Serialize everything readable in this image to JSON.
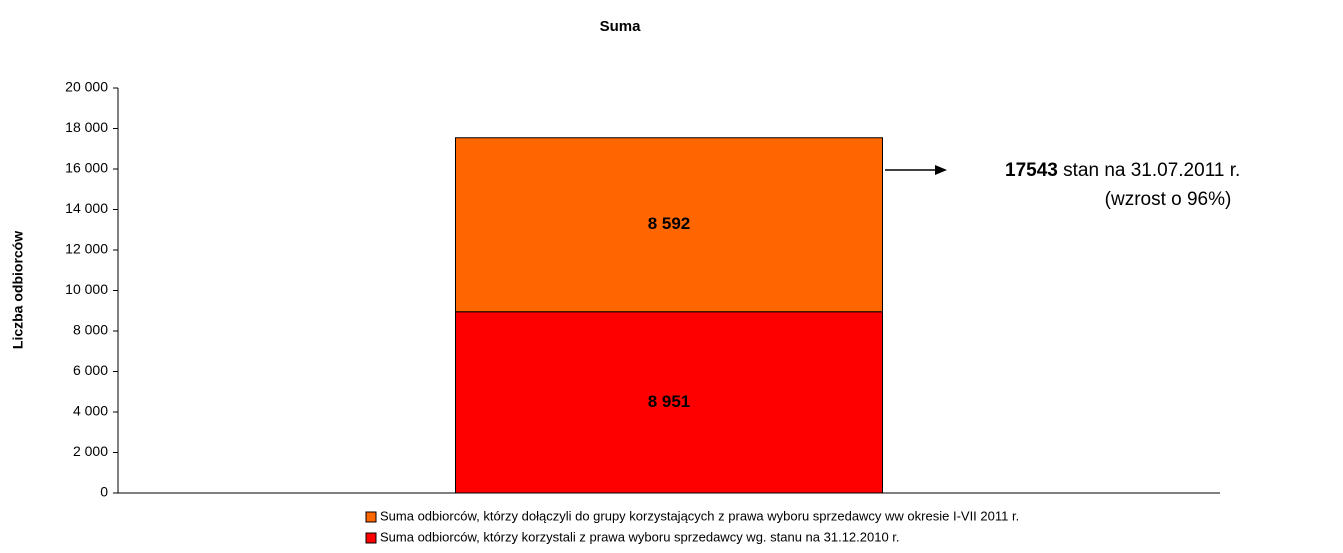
{
  "chart_data": {
    "type": "stacked_bar",
    "title": "Suma",
    "ylabel": "Liczba odbiorców",
    "categories": [
      null
    ],
    "series": [
      {
        "name": "Suma odbiorców, którzy korzystali z prawa wyboru sprzedawcy wg. stanu na 31.12.2010 r.",
        "color": "#ff0000",
        "values": [
          8951
        ],
        "value_labels": [
          "8 951"
        ]
      },
      {
        "name": "Suma odbiorców, którzy dołączyli do grupy korzystających z prawa wyboru sprzedawcy ww okresie I-VII  2011 r.",
        "color": "#ff6600",
        "values": [
          8592
        ],
        "value_labels": [
          "8 592"
        ]
      }
    ],
    "ylim": [
      0,
      20000
    ],
    "yticks": [
      0,
      {
        "value": 2000,
        "label": "2 000"
      },
      {
        "value": 4000,
        "label": "4 000"
      },
      {
        "value": 6000,
        "label": "6 000"
      },
      {
        "value": 8000,
        "label": "8 000"
      },
      {
        "value": 10000,
        "label": "10 000"
      },
      {
        "value": 12000,
        "label": "12 000"
      },
      {
        "value": 14000,
        "label": "14 000"
      },
      {
        "value": 16000,
        "label": "16 000"
      },
      {
        "value": 18000,
        "label": "18 000"
      },
      {
        "value": 20000,
        "label": "20 000"
      }
    ],
    "annotation": {
      "value": 17543,
      "text": "stan na 31.07.2011 r.",
      "note": "(wzrost o 96%)"
    }
  }
}
